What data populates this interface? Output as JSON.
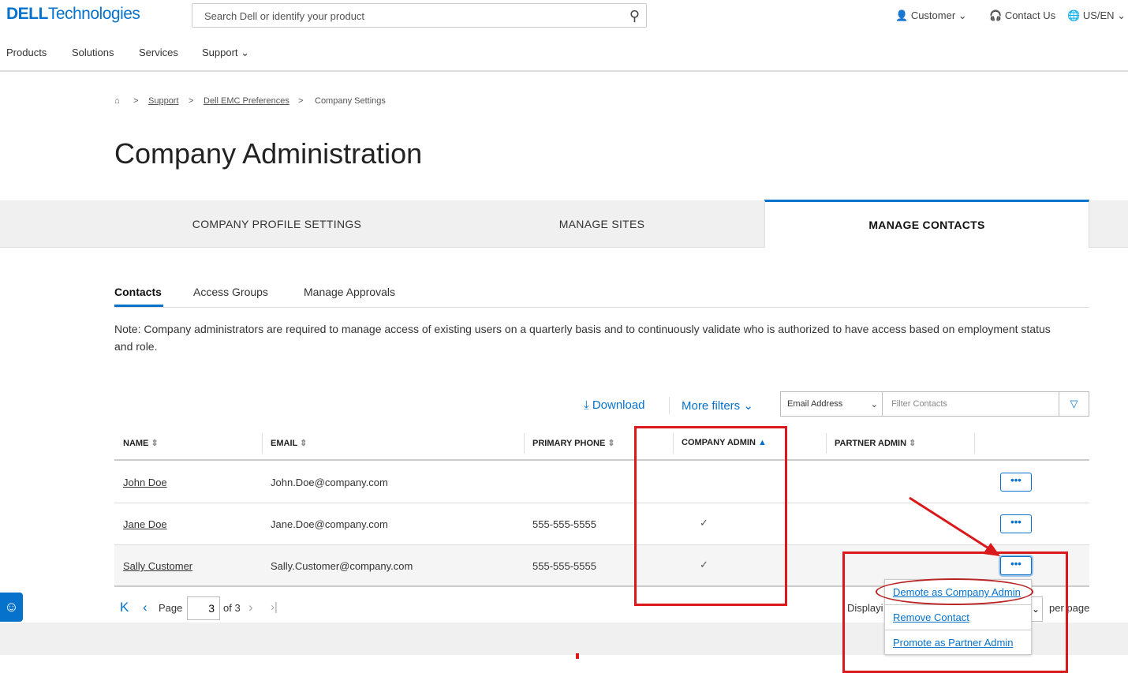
{
  "header": {
    "logo_bold": "DELL",
    "logo_rest": "Technologies",
    "search_placeholder": "Search Dell or identify your product",
    "account": "Customer",
    "contact": "Contact Us",
    "locale": "US/EN"
  },
  "nav": [
    "Products",
    "Solutions",
    "Services",
    "Support"
  ],
  "breadcrumb": [
    "Support",
    "Dell EMC Preferences",
    "Company Settings"
  ],
  "title": "Company Administration",
  "tabs": [
    "COMPANY PROFILE SETTINGS",
    "MANAGE SITES",
    "MANAGE CONTACTS"
  ],
  "subtabs": [
    "Contacts",
    "Access Groups",
    "Manage Approvals"
  ],
  "note": "Note: Company administrators are required to manage access of existing users on a quarterly basis and to continuously validate who is authorized to have access based on employment status and role.",
  "toolbar": {
    "download": "Download",
    "more_filters": "More filters",
    "filter_field": "Email Address",
    "filter_placeholder": "Filter Contacts"
  },
  "table": {
    "headers": [
      "NAME",
      "EMAIL",
      "PRIMARY PHONE",
      "COMPANY ADMIN",
      "PARTNER ADMIN"
    ],
    "rows": [
      {
        "name": "John Doe",
        "email": "John.Doe@company.com",
        "phone": "",
        "company_admin": false,
        "partner_admin": false
      },
      {
        "name": "Jane Doe",
        "email": "Jane.Doe@company.com",
        "phone": "555-555-5555",
        "company_admin": true,
        "partner_admin": false
      },
      {
        "name": "Sally Customer",
        "email": "Sally.Customer@company.com",
        "phone": "555-555-5555",
        "company_admin": true,
        "partner_admin": false
      }
    ]
  },
  "pagination": {
    "page_label": "Page",
    "page": "3",
    "of": "of 3",
    "displaying": "Displayi",
    "per_page": "per page"
  },
  "menu": [
    "Demote as Company Admin",
    "Remove Contact",
    "Promote as Partner Admin"
  ],
  "colors": {
    "accent": "#0672cb",
    "annotation": "#d9191b"
  }
}
